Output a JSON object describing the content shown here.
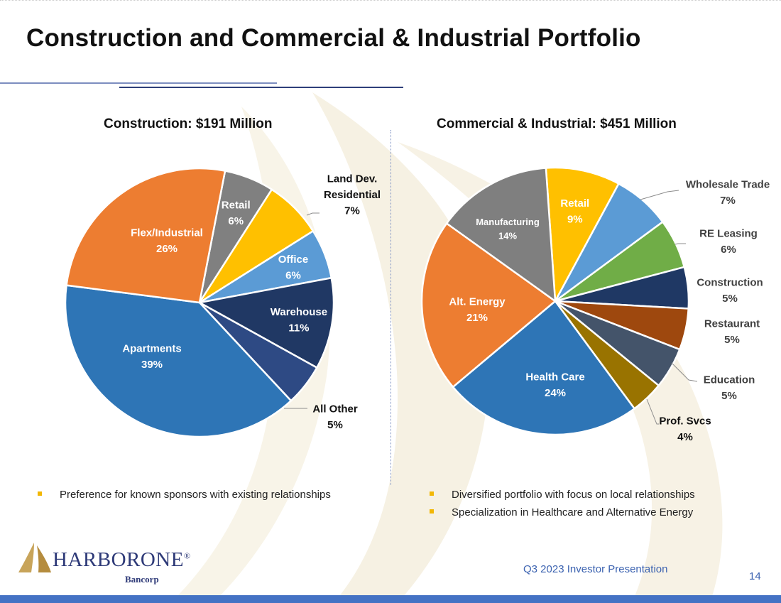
{
  "slide": {
    "title": "Construction and Commercial & Industrial Portfolio",
    "footer": "Q3 2023 Investor Presentation",
    "page_number": "14",
    "logo": {
      "name": "HARBORONE",
      "suffix": "Bancorp",
      "mark": "®"
    },
    "bullets_left": [
      "Preference for known sponsors with existing relationships"
    ],
    "bullets_right": [
      "Diversified portfolio with focus on local relationships",
      "Specialization in Healthcare and Alternative Energy"
    ],
    "colors": {
      "title_rule_dark": "#2e3f7a",
      "title_rule_light": "#7d8ec0",
      "footer": "#3b62b0",
      "bullet": "#f2b705",
      "bottom_bar": "#4472c4"
    }
  },
  "chart_data": [
    {
      "type": "pie",
      "title": "Construction:  $191 Million",
      "slices": [
        {
          "label": "Retail",
          "value": 6,
          "display": "6%",
          "color": "#808080"
        },
        {
          "label": "Land Dev. Residential",
          "value": 7,
          "display": "7%",
          "color": "#ffc000"
        },
        {
          "label": "Office",
          "value": 6,
          "display": "6%",
          "color": "#5b9bd5"
        },
        {
          "label": "Warehouse",
          "value": 11,
          "display": "11%",
          "color": "#203864"
        },
        {
          "label": "All Other",
          "value": 5,
          "display": "5%",
          "color": "#2e4a84"
        },
        {
          "label": "Apartments",
          "value": 39,
          "display": "39%",
          "color": "#2e75b6"
        },
        {
          "label": "Flex/Industrial",
          "value": 26,
          "display": "26%",
          "color": "#ed7d31"
        }
      ]
    },
    {
      "type": "pie",
      "title": "Commercial & Industrial:  $451 Million",
      "slices": [
        {
          "label": "Retail",
          "value": 9,
          "display": "9%",
          "color": "#ffc000"
        },
        {
          "label": "Wholesale Trade",
          "value": 7,
          "display": "7%",
          "color": "#5b9bd5"
        },
        {
          "label": "RE Leasing",
          "value": 6,
          "display": "6%",
          "color": "#70ad47"
        },
        {
          "label": "Construction",
          "value": 5,
          "display": "5%",
          "color": "#1f3864"
        },
        {
          "label": "Restaurant",
          "value": 5,
          "display": "5%",
          "color": "#9e480e"
        },
        {
          "label": "Education",
          "value": 5,
          "display": "5%",
          "color": "#44546a"
        },
        {
          "label": "Prof. Svcs",
          "value": 4,
          "display": "4%",
          "color": "#997300"
        },
        {
          "label": "Health Care",
          "value": 24,
          "display": "24%",
          "color": "#2e75b6"
        },
        {
          "label": "Alt. Energy",
          "value": 21,
          "display": "21%",
          "color": "#ed7d31"
        },
        {
          "label": "Manufacturing",
          "value": 14,
          "display": "14%",
          "color": "#7f7f7f"
        }
      ]
    }
  ]
}
